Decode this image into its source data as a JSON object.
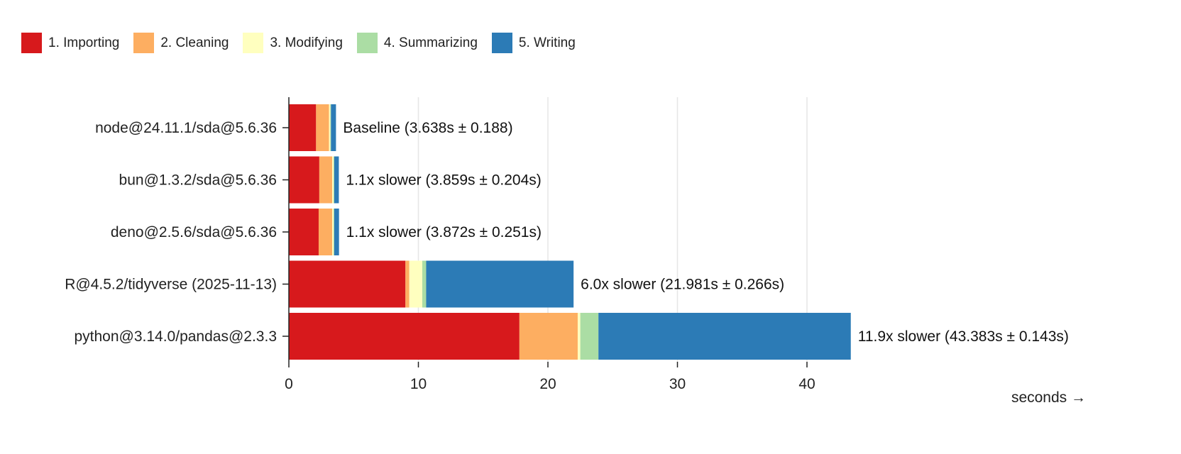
{
  "chart_data": {
    "type": "bar",
    "orientation": "horizontal",
    "stacked": true,
    "categories": [
      "node@24.11.1/sda@5.6.36",
      "bun@1.3.2/sda@5.6.36",
      "deno@2.5.6/sda@5.6.36",
      "R@4.5.2/tidyverse (2025-11-13)",
      "python@3.14.0/pandas@2.3.3"
    ],
    "series": [
      {
        "name": "1. Importing",
        "color": "#d7191c",
        "values": [
          2.1,
          2.35,
          2.3,
          9.0,
          17.8
        ]
      },
      {
        "name": "2. Cleaning",
        "color": "#fdae61",
        "values": [
          1.0,
          1.0,
          1.05,
          0.3,
          4.5
        ]
      },
      {
        "name": "3. Modifying",
        "color": "#ffffbf",
        "values": [
          0.1,
          0.1,
          0.1,
          1.0,
          0.2
        ]
      },
      {
        "name": "4. Summarizing",
        "color": "#abdda4",
        "values": [
          0.05,
          0.05,
          0.05,
          0.3,
          1.4
        ]
      },
      {
        "name": "5. Writing",
        "color": "#2c7bb6",
        "values": [
          0.388,
          0.359,
          0.372,
          11.381,
          19.483
        ]
      }
    ],
    "bar_labels": [
      "Baseline (3.638s ± 0.188)",
      "1.1x slower (3.859s ± 0.204s)",
      "1.1x slower (3.872s ± 0.251s)",
      "6.0x slower (21.981s ± 0.266s)",
      "11.9x slower (43.383s ± 0.143s)"
    ],
    "xlabel": "seconds →",
    "xticks": [
      0,
      10,
      20,
      30,
      40
    ],
    "xlim": [
      0,
      62
    ],
    "grid": true,
    "legend_position": "top-left"
  }
}
